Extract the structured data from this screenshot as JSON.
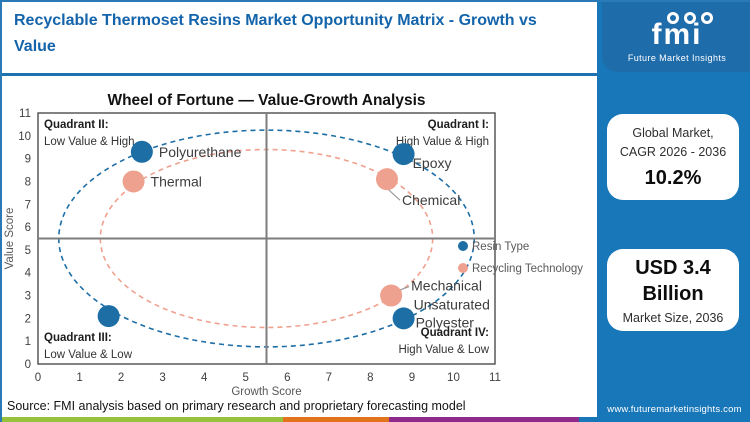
{
  "header": {
    "title": "Recyclable Thermoset Resins Market Opportunity Matrix - Growth vs Value"
  },
  "brand": {
    "logo_text": "fmi",
    "logo_tagline": "Future Market Insights",
    "website": "www.futuremarketinsights.com"
  },
  "side_panel": {
    "cagr_card": {
      "line1": "Global Market,",
      "line2": "CAGR 2026 - 2036",
      "value": "10.2%"
    },
    "size_card": {
      "line1": "USD 3.4",
      "line2": "Billion",
      "label": "Market Size, 2036"
    }
  },
  "source_note": "Source: FMI analysis based on primary research and proprietary forecasting model",
  "colors": {
    "title_blue": "#1464ab",
    "separator_blue": "#1f72b0",
    "panel_blue": "#1877b8",
    "logo_blue": "#1f6cab",
    "footer_bar": [
      "#97c13c",
      "#e2731c",
      "#8f2a8d",
      "#1877b8"
    ]
  },
  "chart_data": {
    "type": "scatter",
    "title": "Wheel of Fortune — Value-Growth Analysis",
    "xlabel": "Growth Score",
    "ylabel": "Value Score",
    "xlim": [
      0,
      11
    ],
    "ylim": [
      0,
      11
    ],
    "x_ticks": [
      0,
      1,
      2,
      3,
      4,
      5,
      6,
      7,
      8,
      9,
      10,
      11
    ],
    "y_ticks": [
      0,
      1,
      2,
      3,
      4,
      5,
      6,
      7,
      8,
      9,
      10,
      11
    ],
    "grid": false,
    "midlines": {
      "x": 5.5,
      "y": 5.5
    },
    "series": [
      {
        "name": "Resin Type",
        "color": "#1d6ea5",
        "ellipse": {
          "cx": 5.5,
          "cy": 5.5,
          "rx": 5.0,
          "ry": 4.75
        },
        "points": [
          {
            "label": "Polyurethane",
            "x": 2.5,
            "y": 9.3,
            "label_pos": "right"
          },
          {
            "label": "Epoxy",
            "x": 8.8,
            "y": 9.2,
            "label_pos": "below-right"
          },
          {
            "label": "Unsaturated Polyester",
            "x": 8.8,
            "y": 2.0,
            "label_pos": "above-right-2line"
          },
          {
            "label": "",
            "x": 1.7,
            "y": 2.1,
            "label_pos": "none"
          }
        ]
      },
      {
        "name": "Recycling Technology",
        "color": "#efa18f",
        "ellipse": {
          "cx": 5.5,
          "cy": 5.5,
          "rx": 4.0,
          "ry": 3.9
        },
        "points": [
          {
            "label": "Thermal",
            "x": 2.3,
            "y": 8.0,
            "label_pos": "right"
          },
          {
            "label": "Chemical",
            "x": 8.4,
            "y": 8.1,
            "label_pos": "below-right-connector"
          },
          {
            "label": "Mechanical",
            "x": 8.5,
            "y": 3.0,
            "label_pos": "right-above-connector"
          }
        ]
      }
    ],
    "quadrants": [
      {
        "title": "Quadrant II:",
        "subtitle": "Low Value & High",
        "corner": "top-left"
      },
      {
        "title": "Quadrant I:",
        "subtitle": "High Value & High",
        "corner": "top-right"
      },
      {
        "title": "Quadrant III:",
        "subtitle": "Low Value & Low",
        "corner": "bottom-left"
      },
      {
        "title": "Quadrant IV:",
        "subtitle": "High Value & Low",
        "corner": "bottom-right"
      }
    ],
    "legend": {
      "position": "right-middle"
    }
  }
}
